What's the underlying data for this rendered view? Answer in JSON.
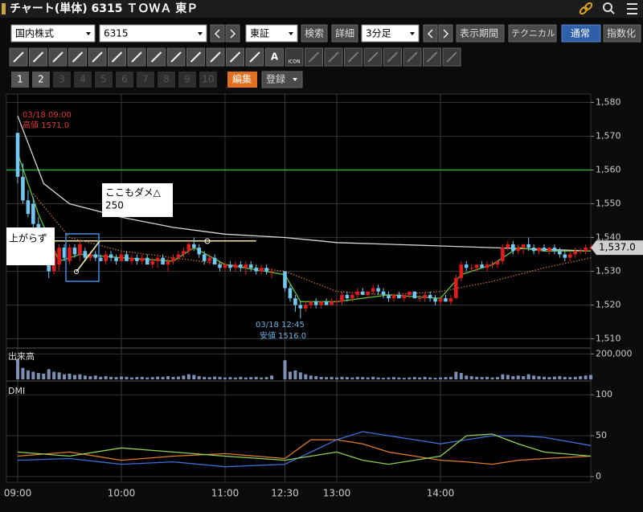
{
  "header": {
    "title": "チャート(単体) 6315 ＴＯＷＡ 東Ｐ"
  },
  "toolbar": {
    "market": "国内株式",
    "code": "6315",
    "exchange": "東証",
    "search": "検索",
    "detail": "詳細",
    "interval": "3分足",
    "period": "表示期間",
    "technical": "テクニカル",
    "normal": "通常",
    "index": "指数化",
    "text_tool": "A",
    "icon_tool": "ICON"
  },
  "tabs": {
    "numbers": [
      "1",
      "2",
      "3",
      "4",
      "5",
      "6",
      "7",
      "8",
      "9",
      "10"
    ],
    "edit": "編集",
    "register": "登録"
  },
  "chart_data": [
    {
      "type": "candlestick",
      "up_color": "#e31a1c",
      "down_color": "#72c8f0",
      "ylim": [
        1507.5,
        1582.5
      ],
      "yticks": [
        {
          "value": 1510,
          "label": "1,510"
        },
        {
          "value": 1520,
          "label": "1,520"
        },
        {
          "value": 1530,
          "label": "1,530"
        },
        {
          "value": 1540,
          "label": "1,540"
        },
        {
          "value": 1550,
          "label": "1,550"
        },
        {
          "value": 1560,
          "label": "1,560"
        },
        {
          "value": 1570,
          "label": "1,570"
        },
        {
          "value": 1580,
          "label": "1,580"
        }
      ],
      "xticks": [
        "09:00",
        "10:00",
        "11:00",
        "12:30",
        "13:00",
        "14:00"
      ],
      "candles": [
        [
          1571,
          1571,
          1556,
          1558
        ],
        [
          1558,
          1562,
          1550,
          1551
        ],
        [
          1551,
          1554,
          1546,
          1547
        ],
        [
          1550,
          1552,
          1542,
          1544
        ],
        [
          1544,
          1546,
          1540,
          1541
        ],
        [
          1541,
          1543,
          1537,
          1538
        ],
        [
          1538,
          1539,
          1528,
          1530
        ],
        [
          1530,
          1537,
          1529,
          1536
        ],
        [
          1532,
          1538,
          1530,
          1537
        ],
        [
          1537,
          1538,
          1533,
          1534
        ],
        [
          1533,
          1538,
          1532,
          1537
        ],
        [
          1537,
          1538,
          1534,
          1535
        ],
        [
          1535,
          1539,
          1533,
          1538
        ],
        [
          1536,
          1537,
          1533,
          1534
        ],
        [
          1534,
          1536,
          1533,
          1535
        ],
        [
          1535,
          1536,
          1533,
          1534
        ],
        [
          1534,
          1535,
          1533,
          1533
        ],
        [
          1533,
          1536,
          1532,
          1535
        ],
        [
          1535,
          1536,
          1533,
          1534
        ],
        [
          1534,
          1535,
          1532,
          1533
        ],
        [
          1533,
          1536,
          1533,
          1535
        ],
        [
          1535,
          1536,
          1533,
          1533
        ],
        [
          1533,
          1535,
          1532,
          1534
        ],
        [
          1534,
          1535,
          1532,
          1533
        ],
        [
          1533,
          1535,
          1532,
          1534
        ],
        [
          1534,
          1535,
          1532,
          1532
        ],
        [
          1532,
          1534,
          1531,
          1533
        ],
        [
          1533,
          1535,
          1531,
          1534
        ],
        [
          1534,
          1535,
          1532,
          1532
        ],
        [
          1532,
          1534,
          1530,
          1533
        ],
        [
          1533,
          1535,
          1532,
          1534
        ],
        [
          1534,
          1536,
          1533,
          1535
        ],
        [
          1535,
          1537,
          1534,
          1536
        ],
        [
          1536,
          1539,
          1535,
          1538
        ],
        [
          1538,
          1540,
          1536,
          1537
        ],
        [
          1537,
          1538,
          1534,
          1535
        ],
        [
          1535,
          1536,
          1532,
          1533
        ],
        [
          1533,
          1535,
          1532,
          1534
        ],
        [
          1534,
          1535,
          1532,
          1532
        ],
        [
          1532,
          1533,
          1530,
          1531
        ],
        [
          1531,
          1533,
          1530,
          1532
        ],
        [
          1532,
          1533,
          1530,
          1531
        ],
        [
          1531,
          1533,
          1530,
          1532
        ],
        [
          1532,
          1533,
          1530,
          1531
        ],
        [
          1531,
          1533,
          1529,
          1532
        ],
        [
          1532,
          1533,
          1530,
          1531
        ],
        [
          1531,
          1532,
          1529,
          1530
        ],
        [
          1530,
          1532,
          1529,
          1531
        ],
        [
          1531,
          1532,
          1529,
          1530
        ],
        [
          1530,
          1531,
          1528,
          1530
        ],
        [
          1530,
          1530,
          1524,
          1525
        ],
        [
          1525,
          1526,
          1521,
          1522
        ],
        [
          1522,
          1523,
          1518,
          1520
        ],
        [
          1520,
          1521,
          1516,
          1519
        ],
        [
          1519,
          1521,
          1518,
          1520
        ],
        [
          1520,
          1521,
          1519,
          1521
        ],
        [
          1521,
          1522,
          1519,
          1520
        ],
        [
          1520,
          1521,
          1519,
          1521
        ],
        [
          1521,
          1522,
          1520,
          1520
        ],
        [
          1520,
          1522,
          1520,
          1521
        ],
        [
          1521,
          1522,
          1520,
          1521
        ],
        [
          1521,
          1524,
          1520,
          1523
        ],
        [
          1523,
          1524,
          1521,
          1522
        ],
        [
          1522,
          1524,
          1521,
          1523
        ],
        [
          1523,
          1525,
          1522,
          1524
        ],
        [
          1524,
          1525,
          1523,
          1523
        ],
        [
          1523,
          1524,
          1522,
          1524
        ],
        [
          1524,
          1526,
          1523,
          1525
        ],
        [
          1525,
          1526,
          1523,
          1524
        ],
        [
          1524,
          1525,
          1522,
          1523
        ],
        [
          1523,
          1524,
          1521,
          1522
        ],
        [
          1522,
          1523,
          1521,
          1523
        ],
        [
          1523,
          1524,
          1522,
          1522
        ],
        [
          1522,
          1523,
          1521,
          1523
        ],
        [
          1523,
          1524,
          1522,
          1524
        ],
        [
          1524,
          1524,
          1522,
          1522
        ],
        [
          1522,
          1523,
          1521,
          1522
        ],
        [
          1522,
          1524,
          1521,
          1523
        ],
        [
          1523,
          1524,
          1521,
          1522
        ],
        [
          1522,
          1523,
          1520,
          1521
        ],
        [
          1521,
          1522,
          1520,
          1522
        ],
        [
          1522,
          1523,
          1521,
          1521
        ],
        [
          1521,
          1523,
          1520,
          1522
        ],
        [
          1522,
          1529,
          1522,
          1528
        ],
        [
          1528,
          1533,
          1527,
          1532
        ],
        [
          1532,
          1533,
          1530,
          1531
        ],
        [
          1531,
          1532,
          1530,
          1531
        ],
        [
          1531,
          1532,
          1530,
          1532
        ],
        [
          1532,
          1533,
          1531,
          1531
        ],
        [
          1531,
          1533,
          1530,
          1532
        ],
        [
          1532,
          1533,
          1531,
          1532
        ],
        [
          1532,
          1533,
          1531,
          1533
        ],
        [
          1533,
          1538,
          1532,
          1537
        ],
        [
          1537,
          1539,
          1536,
          1538
        ],
        [
          1538,
          1539,
          1535,
          1536
        ],
        [
          1536,
          1538,
          1535,
          1537
        ],
        [
          1537,
          1538,
          1535,
          1538
        ],
        [
          1538,
          1540,
          1536,
          1537
        ],
        [
          1537,
          1538,
          1535,
          1536
        ],
        [
          1536,
          1537,
          1535,
          1537
        ],
        [
          1537,
          1538,
          1536,
          1536
        ],
        [
          1536,
          1537,
          1535,
          1537
        ],
        [
          1537,
          1538,
          1535,
          1536
        ],
        [
          1536,
          1537,
          1534,
          1535
        ],
        [
          1535,
          1536,
          1533,
          1534
        ],
        [
          1534,
          1536,
          1533,
          1535
        ],
        [
          1535,
          1537,
          1534,
          1536
        ],
        [
          1536,
          1537,
          1535,
          1536
        ],
        [
          1536,
          1538,
          1535,
          1537
        ],
        [
          1537,
          1538,
          1536,
          1537
        ]
      ],
      "lines": [
        {
          "color": "#d8d8d8",
          "x": [
            "09:00",
            "09:15",
            "09:30",
            "09:45",
            "10:00",
            "10:30",
            "11:00",
            "12:30",
            "13:00",
            "13:30",
            "14:00",
            "14:30",
            "15:00",
            "15:27"
          ],
          "values": [
            1576,
            1556,
            1550,
            1548,
            1546,
            1543,
            1541,
            1540,
            1538.5,
            1538,
            1537.5,
            1537,
            1536.5,
            1536
          ]
        },
        {
          "color": "#c0702a",
          "style": "dotted",
          "x": [
            "09:09",
            "09:30",
            "10:00",
            "10:30",
            "11:00",
            "12:30",
            "13:00",
            "13:30",
            "14:00",
            "14:30",
            "15:00",
            "15:27"
          ],
          "values": [
            1553,
            1540,
            1536,
            1534,
            1532,
            1530,
            1524,
            1523,
            1524,
            1527,
            1531,
            1534
          ]
        },
        {
          "color": "#5fbf3a",
          "x": [
            "09:00",
            "09:12",
            "09:24",
            "09:36",
            "10:00",
            "10:30",
            "10:42",
            "11:00",
            "12:30",
            "12:39",
            "13:00",
            "13:30",
            "14:00",
            "14:12",
            "14:30",
            "14:45",
            "15:00",
            "15:27"
          ],
          "values": [
            1565,
            1547,
            1533,
            1535,
            1534,
            1533,
            1537,
            1532,
            1529,
            1521,
            1521,
            1523,
            1522,
            1529,
            1532,
            1537,
            1536,
            1536
          ]
        }
      ],
      "hlines": [
        {
          "value": 1560,
          "color": "#2fa83a"
        },
        {
          "value": 1539,
          "color": "#f3e79a",
          "from": "09:18",
          "to": "11:18"
        }
      ],
      "last": {
        "value": 1537,
        "label": "1,537.0"
      },
      "annotations": {
        "high_time": "03/18 09:00",
        "high": "高値 1571.0",
        "low_time": "03/18 12:45",
        "low": "安値 1516.0",
        "note1": "ここもダメ△",
        "note1_value": "250",
        "note2": "上がらず"
      }
    },
    {
      "type": "bar",
      "title": "出来高",
      "color": "#7d8fb3",
      "ylim": [
        0,
        240000
      ],
      "yticks": [
        {
          "value": 200000,
          "label": "200,000"
        }
      ],
      "values": [
        160000,
        90000,
        70000,
        60000,
        50000,
        45000,
        80000,
        60000,
        55000,
        40000,
        45000,
        35000,
        40000,
        30000,
        25000,
        30000,
        20000,
        25000,
        20000,
        18000,
        22000,
        20000,
        15000,
        18000,
        20000,
        15000,
        18000,
        22000,
        20000,
        25000,
        20000,
        22000,
        30000,
        40000,
        35000,
        25000,
        20000,
        18000,
        22000,
        20000,
        15000,
        18000,
        15000,
        20000,
        15000,
        18000,
        20000,
        15000,
        18000,
        30000,
        150000,
        60000,
        70000,
        55000,
        40000,
        30000,
        25000,
        20000,
        18000,
        20000,
        15000,
        20000,
        18000,
        15000,
        20000,
        18000,
        15000,
        20000,
        15000,
        12000,
        15000,
        18000,
        15000,
        12000,
        15000,
        18000,
        15000,
        20000,
        15000,
        12000,
        15000,
        18000,
        20000,
        60000,
        50000,
        30000,
        25000,
        20000,
        18000,
        20000,
        15000,
        18000,
        40000,
        35000,
        25000,
        30000,
        25000,
        40000,
        30000,
        25000,
        20000,
        18000,
        22000,
        25000,
        20000,
        18000,
        20000,
        25000,
        30000,
        35000
      ]
    },
    {
      "type": "line",
      "title": "DMI",
      "ylim": [
        -7,
        115
      ],
      "yticks": [
        0,
        50,
        100
      ],
      "x": [
        "09:00",
        "09:30",
        "10:00",
        "10:30",
        "11:00",
        "12:30",
        "12:45",
        "13:00",
        "13:15",
        "13:30",
        "13:45",
        "14:00",
        "14:15",
        "14:30",
        "14:45",
        "15:00",
        "15:27"
      ],
      "series": [
        {
          "color": "#e07b2a",
          "values": [
            25,
            30,
            20,
            25,
            28,
            22,
            45,
            45,
            40,
            30,
            25,
            20,
            18,
            15,
            20,
            22,
            25
          ]
        },
        {
          "color": "#3d6fd6",
          "values": [
            20,
            22,
            15,
            18,
            12,
            15,
            30,
            45,
            55,
            50,
            45,
            40,
            45,
            50,
            50,
            48,
            38
          ]
        },
        {
          "color": "#8fcf5a",
          "values": [
            30,
            25,
            35,
            30,
            25,
            20,
            25,
            30,
            20,
            15,
            20,
            25,
            50,
            52,
            40,
            30,
            25
          ]
        }
      ]
    }
  ]
}
